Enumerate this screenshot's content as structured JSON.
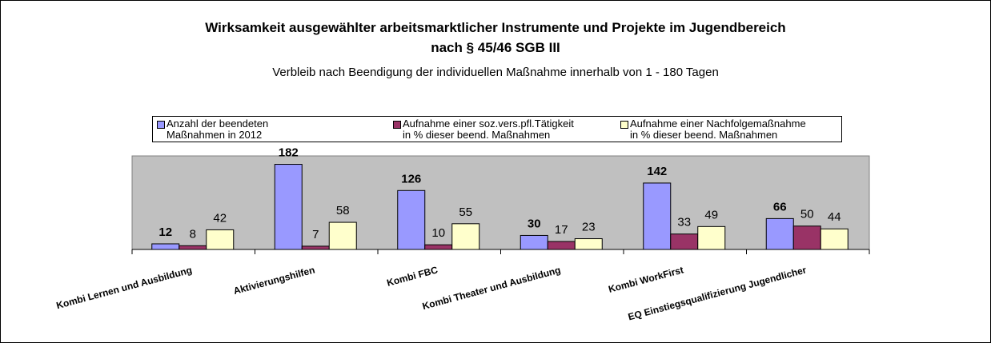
{
  "chart_data": {
    "type": "bar",
    "title": "Wirksamkeit ausgewählter arbeitsmarktlicher Instrumente und Projekte im Jugendbereich\nnach § 45/46 SGB III",
    "subtitle": "Verbleib nach Beendigung der individuellen Maßnahme innerhalb von 1 - 180 Tagen",
    "categories": [
      "Kombi Lernen und Ausbildung",
      "Aktivierungshilfen",
      "Kombi FBC",
      "Kombi Theater und Ausbildung",
      "Kombi WorkFirst",
      "EQ Einstiegsqualifizierung Jugendlicher"
    ],
    "series": [
      {
        "name": "Anzahl der beendeten\nMaßnahmen in 2012",
        "color": "#9999ff",
        "values": [
          12,
          182,
          126,
          30,
          142,
          66
        ]
      },
      {
        "name": "Aufnahme einer soz.vers.pfl.Tätigkeit\nin % dieser beend. Maßnahmen",
        "color": "#993366",
        "values": [
          8,
          7,
          10,
          17,
          33,
          50
        ]
      },
      {
        "name": "Aufnahme einer Nachfolgemaßnahme\nin % dieser beend. Maßnahmen",
        "color": "#ffffcc",
        "values": [
          42,
          58,
          55,
          23,
          49,
          44
        ]
      }
    ],
    "ylim": [
      0,
      200
    ],
    "legend": "top",
    "plot_background": "#c0c0c0"
  }
}
